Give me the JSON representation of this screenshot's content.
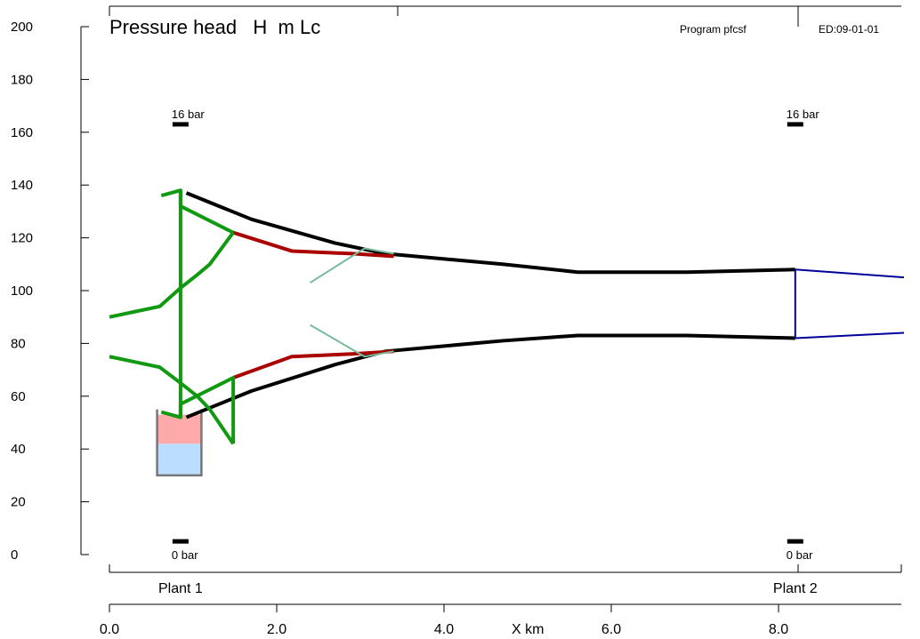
{
  "chart_data": {
    "type": "line",
    "title": "Pressure head   H  m Lc",
    "program_label": "Program pfcsf",
    "edition_label": "ED:09-01-01",
    "xlabel": "X km",
    "ylabel": "",
    "xlim": [
      0,
      9.5
    ],
    "ylim": [
      0,
      200
    ],
    "x_ticks": [
      {
        "value": 0,
        "label": "0.0"
      },
      {
        "value": 2,
        "label": "2.0"
      },
      {
        "value": 4,
        "label": "4.0"
      },
      {
        "value": 6,
        "label": "6.0"
      },
      {
        "value": 8,
        "label": "8.0"
      }
    ],
    "y_ticks": [
      {
        "value": 0,
        "label": "0"
      },
      {
        "value": 20,
        "label": "20"
      },
      {
        "value": 40,
        "label": "40"
      },
      {
        "value": 60,
        "label": "60"
      },
      {
        "value": 80,
        "label": "80"
      },
      {
        "value": 100,
        "label": "100"
      },
      {
        "value": 120,
        "label": "120"
      },
      {
        "value": 140,
        "label": "140"
      },
      {
        "value": 160,
        "label": "160"
      },
      {
        "value": 180,
        "label": "180"
      },
      {
        "value": 200,
        "label": "200"
      }
    ],
    "plants": [
      {
        "label": "Plant 1",
        "x": 0.85
      },
      {
        "label": "Plant 2",
        "x": 8.2
      }
    ],
    "pressure_markers": [
      {
        "x": 0.85,
        "y": 163,
        "label": "16 bar"
      },
      {
        "x": 8.2,
        "y": 163,
        "label": "16 bar"
      },
      {
        "x": 0.85,
        "y": 5,
        "label": "0 bar"
      },
      {
        "x": 8.2,
        "y": 5,
        "label": "0 bar"
      }
    ],
    "reservoir": {
      "x_range": [
        0.57,
        1.1
      ],
      "water_range": [
        30,
        42
      ],
      "mid_range": [
        42,
        53
      ],
      "top": 55
    },
    "series": [
      {
        "role": "upper-envelope",
        "color": "#000000",
        "points": [
          [
            0.92,
            137
          ],
          [
            1.7,
            127
          ],
          [
            2.7,
            118
          ],
          [
            3.3,
            114
          ],
          [
            4.7,
            110
          ],
          [
            5.6,
            107
          ],
          [
            6.9,
            107
          ],
          [
            8.2,
            108
          ]
        ]
      },
      {
        "role": "lower-envelope",
        "color": "#000000",
        "points": [
          [
            0.92,
            52
          ],
          [
            1.7,
            62
          ],
          [
            2.7,
            72
          ],
          [
            3.3,
            77
          ],
          [
            4.7,
            81
          ],
          [
            5.6,
            83
          ],
          [
            6.9,
            83
          ],
          [
            8.2,
            82
          ]
        ]
      },
      {
        "role": "upper-segment",
        "color": "#aa0000",
        "points": [
          [
            1.48,
            122
          ],
          [
            2.18,
            115
          ],
          [
            2.9,
            114
          ],
          [
            3.4,
            113
          ]
        ]
      },
      {
        "role": "lower-segment",
        "color": "#aa0000",
        "points": [
          [
            1.48,
            67
          ],
          [
            2.18,
            75
          ],
          [
            2.9,
            76
          ],
          [
            3.4,
            77
          ]
        ]
      },
      {
        "role": "upper-branch",
        "color": "#77bb99",
        "points": [
          [
            2.4,
            103
          ],
          [
            3.05,
            116
          ],
          [
            3.4,
            114
          ]
        ]
      },
      {
        "role": "lower-branch",
        "color": "#77bb99",
        "points": [
          [
            2.4,
            87
          ],
          [
            3.05,
            75
          ],
          [
            3.4,
            77
          ]
        ]
      },
      {
        "role": "upper-outlet",
        "color": "#00009a",
        "points": [
          [
            8.2,
            108
          ],
          [
            9.5,
            105
          ]
        ]
      },
      {
        "role": "lower-outlet",
        "color": "#00009a",
        "points": [
          [
            8.2,
            82
          ],
          [
            9.5,
            84
          ]
        ]
      },
      {
        "role": "outlet-connector",
        "color": "#00009a",
        "points": [
          [
            8.2,
            108
          ],
          [
            8.2,
            82
          ]
        ]
      },
      {
        "role": "surge-upper-curve",
        "color": "#119911",
        "points": [
          [
            0,
            90
          ],
          [
            0.3,
            92
          ],
          [
            0.6,
            94
          ],
          [
            0.85,
            101
          ],
          [
            1.05,
            106
          ],
          [
            1.2,
            110
          ],
          [
            1.48,
            122
          ]
        ]
      },
      {
        "role": "surge-lower-curve",
        "color": "#119911",
        "points": [
          [
            0,
            75
          ],
          [
            0.3,
            73
          ],
          [
            0.6,
            71
          ],
          [
            0.85,
            65
          ],
          [
            1.05,
            60
          ],
          [
            1.2,
            55
          ],
          [
            1.48,
            42
          ]
        ]
      },
      {
        "role": "surge-upper-frame",
        "color": "#119911",
        "points": [
          [
            0.62,
            136
          ],
          [
            0.85,
            138
          ],
          [
            0.85,
            132
          ],
          [
            1.48,
            122
          ]
        ]
      },
      {
        "role": "surge-lower-frame",
        "color": "#119911",
        "points": [
          [
            0.62,
            54
          ],
          [
            0.85,
            52
          ],
          [
            0.85,
            57
          ],
          [
            1.48,
            67
          ],
          [
            1.48,
            42
          ]
        ]
      },
      {
        "role": "surge-riser",
        "color": "#119911",
        "points": [
          [
            0.85,
            138
          ],
          [
            0.85,
            52
          ]
        ]
      }
    ]
  }
}
